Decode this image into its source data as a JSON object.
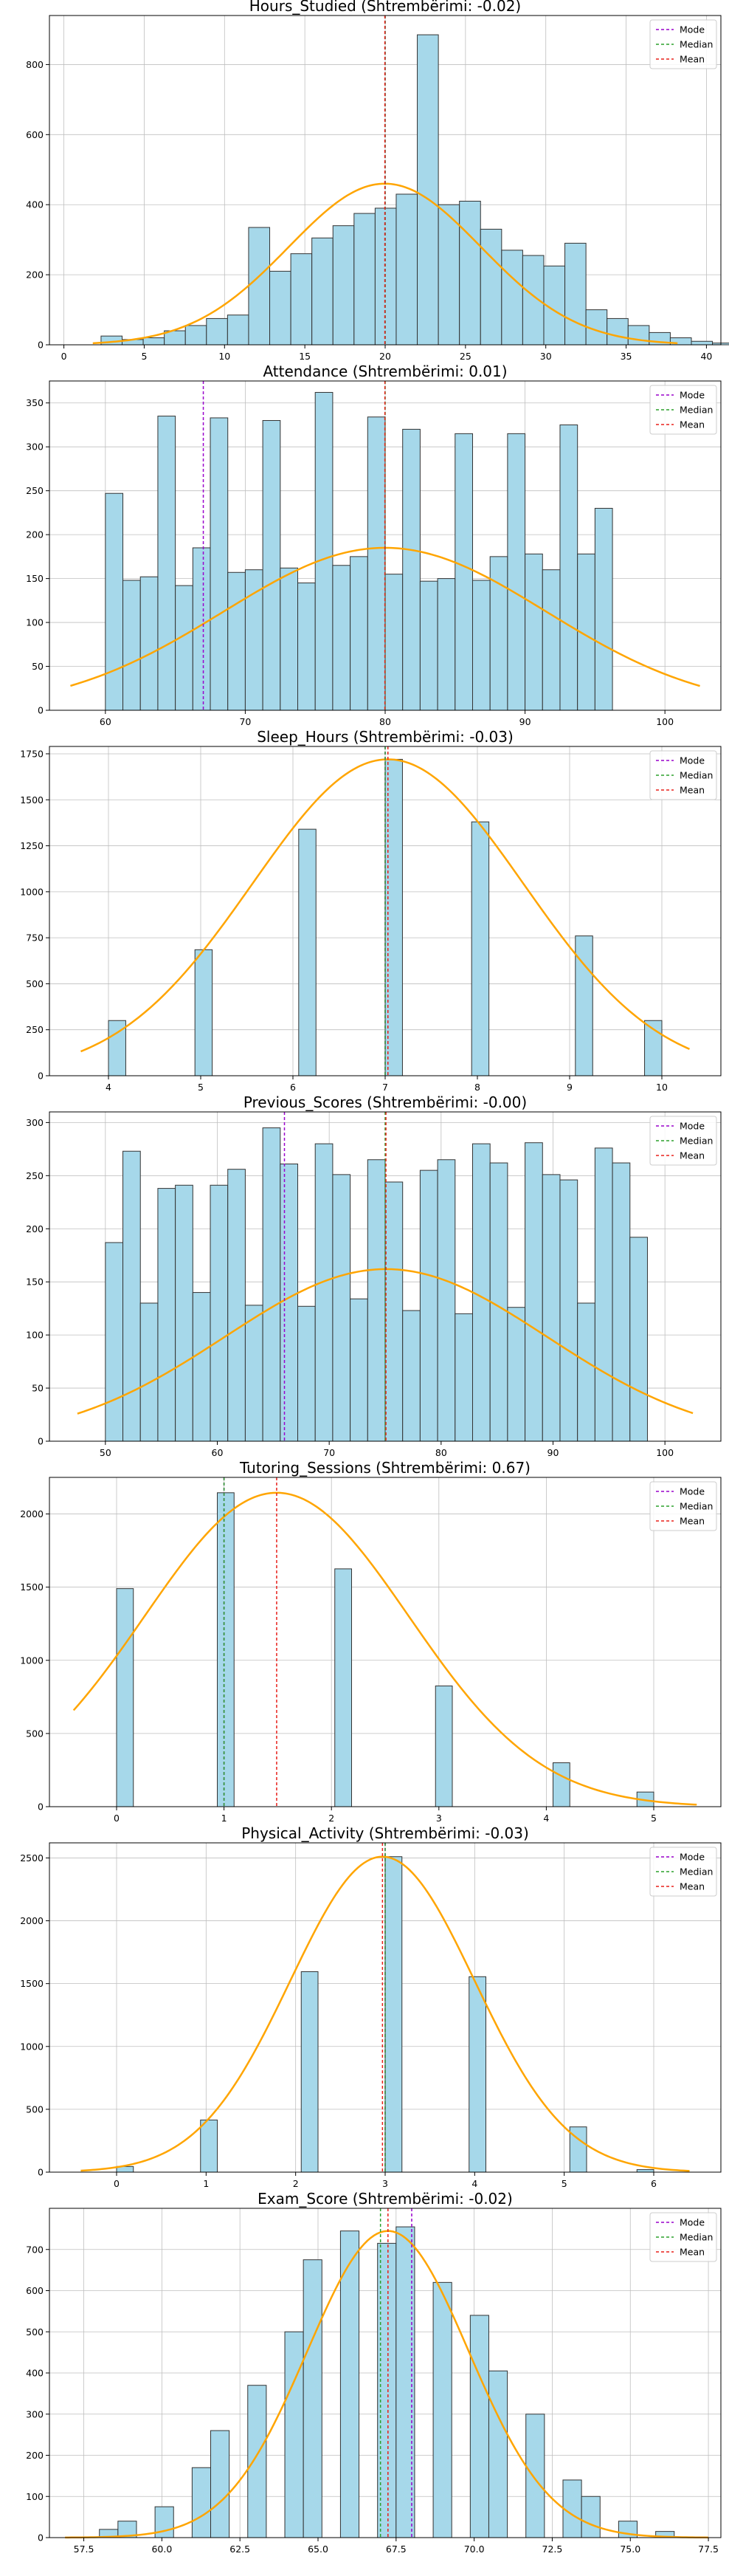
{
  "figure": {
    "colors": {
      "bar_fill": "#a6d8ea",
      "bar_edge": "#333333",
      "kde": "#ffa500",
      "mode": "#9900cc",
      "median": "#2ca02c",
      "mean": "#e8201a",
      "grid": "#bfbfbf"
    }
  },
  "chart_data": [
    {
      "type": "bar",
      "title": "Hours_Studied (Shtrembërimi: -0.02)",
      "legend": [
        "Mode",
        "Median",
        "Mean"
      ],
      "legend_position": "top-right",
      "grid": true,
      "xlim": [
        -0.9,
        40.9
      ],
      "ylim": [
        0,
        940
      ],
      "xticks": [
        0,
        5,
        10,
        15,
        20,
        25,
        30,
        35,
        40
      ],
      "yticks": [
        0,
        200,
        400,
        600,
        800
      ],
      "bin_start": 1,
      "bin_width": 1.3125,
      "values": [
        0,
        25,
        15,
        20,
        40,
        55,
        75,
        85,
        335,
        210,
        260,
        305,
        340,
        375,
        390,
        430,
        885,
        400,
        410,
        330,
        270,
        255,
        225,
        290,
        100,
        75,
        55,
        35,
        20,
        10,
        5,
        5
      ],
      "mode": 20,
      "median": 20,
      "mean": 19.98,
      "kde": {
        "mu": 19.98,
        "sigma": 5.99,
        "peak": 460,
        "x_range": [
          1.8,
          38.2
        ]
      }
    },
    {
      "type": "bar",
      "title": "Attendance (Shtrembërimi: 0.01)",
      "legend": [
        "Mode",
        "Median",
        "Mean"
      ],
      "legend_position": "top-right",
      "grid": true,
      "xlim": [
        56,
        104
      ],
      "ylim": [
        0,
        375
      ],
      "xticks": [
        60,
        70,
        80,
        90,
        100
      ],
      "yticks": [
        0,
        50,
        100,
        150,
        200,
        250,
        300,
        350
      ],
      "bin_start": 60,
      "bin_width": 1.25,
      "values": [
        247,
        148,
        152,
        335,
        142,
        185,
        333,
        157,
        160,
        330,
        162,
        145,
        362,
        165,
        175,
        334,
        155,
        320,
        147,
        150,
        315,
        148,
        175,
        315,
        178,
        160,
        325,
        178,
        230,
        0,
        0,
        0
      ],
      "mode": 67,
      "median": 80,
      "mean": 79.98,
      "kde": {
        "mu": 79.98,
        "sigma": 11.55,
        "peak": 185,
        "x_range": [
          57.5,
          102.5
        ]
      }
    },
    {
      "type": "bar",
      "title": "Sleep_Hours (Shtrembërimi: -0.03)",
      "legend": [
        "Mode",
        "Median",
        "Mean"
      ],
      "legend_position": "top-right",
      "grid": true,
      "xlim": [
        3.36,
        10.64
      ],
      "ylim": [
        0,
        1790
      ],
      "xticks": [
        4,
        5,
        6,
        7,
        8,
        9,
        10
      ],
      "yticks": [
        0,
        250,
        500,
        750,
        1000,
        1250,
        1500,
        1750
      ],
      "bin_start": 4,
      "bin_width": 0.1875,
      "values": [
        300,
        0,
        0,
        0,
        0,
        685,
        0,
        0,
        0,
        0,
        0,
        1340,
        0,
        0,
        0,
        0,
        1720,
        0,
        0,
        0,
        0,
        1380,
        0,
        0,
        0,
        0,
        0,
        760,
        0,
        0,
        0,
        300
      ],
      "mode": 7,
      "median": 7,
      "mean": 7.03,
      "kde": {
        "mu": 7.03,
        "sigma": 1.47,
        "peak": 1720,
        "x_range": [
          3.7,
          10.3
        ]
      }
    },
    {
      "type": "bar",
      "title": "Previous_Scores (Shtrembërimi: -0.00)",
      "legend": [
        "Mode",
        "Median",
        "Mean"
      ],
      "legend_position": "top-right",
      "grid": true,
      "xlim": [
        45,
        105
      ],
      "ylim": [
        0,
        310
      ],
      "xticks": [
        50,
        60,
        70,
        80,
        90,
        100
      ],
      "yticks": [
        0,
        50,
        100,
        150,
        200,
        250,
        300
      ],
      "bin_start": 50,
      "bin_width": 1.5625,
      "values": [
        187,
        273,
        130,
        238,
        241,
        140,
        241,
        256,
        128,
        295,
        261,
        127,
        280,
        251,
        134,
        265,
        244,
        123,
        255,
        265,
        120,
        280,
        262,
        126,
        281,
        251,
        246,
        130,
        276,
        262,
        192,
        0
      ],
      "mode": 66,
      "median": 75,
      "mean": 75.07,
      "kde": {
        "mu": 75.07,
        "sigma": 14.4,
        "peak": 162,
        "x_range": [
          47.5,
          102.5
        ]
      }
    },
    {
      "type": "bar",
      "title": "Tutoring_Sessions (Shtrembërimi: 0.67)",
      "legend": [
        "Mode",
        "Median",
        "Mean"
      ],
      "legend_position": "top-right",
      "grid": true,
      "xlim": [
        -0.625,
        5.625
      ],
      "ylim": [
        0,
        2250
      ],
      "xticks": [
        0,
        1,
        2,
        3,
        4,
        5
      ],
      "yticks": [
        0,
        500,
        1000,
        1500,
        2000
      ],
      "bin_start": 0,
      "bin_width": 0.15625,
      "values": [
        1490,
        0,
        0,
        0,
        0,
        0,
        2145,
        0,
        0,
        0,
        0,
        0,
        0,
        1625,
        0,
        0,
        0,
        0,
        0,
        825,
        0,
        0,
        0,
        0,
        0,
        0,
        300,
        0,
        0,
        0,
        0,
        100
      ],
      "mode": 1,
      "median": 1,
      "mean": 1.49,
      "kde": {
        "mu": 1.49,
        "sigma": 1.23,
        "peak": 2145,
        "x_range": [
          -0.4,
          5.4
        ]
      }
    },
    {
      "type": "bar",
      "title": "Physical_Activity (Shtrembërimi: -0.03)",
      "legend": [
        "Mode",
        "Median",
        "Mean"
      ],
      "legend_position": "top-right",
      "grid": true,
      "xlim": [
        -0.75,
        6.75
      ],
      "ylim": [
        0,
        2620
      ],
      "xticks": [
        0,
        1,
        2,
        3,
        4,
        5,
        6
      ],
      "yticks": [
        0,
        500,
        1000,
        1500,
        2000,
        2500
      ],
      "bin_start": 0,
      "bin_width": 0.1875,
      "values": [
        45,
        0,
        0,
        0,
        0,
        415,
        0,
        0,
        0,
        0,
        0,
        1595,
        0,
        0,
        0,
        0,
        2510,
        0,
        0,
        0,
        0,
        1555,
        0,
        0,
        0,
        0,
        0,
        360,
        0,
        0,
        0,
        20
      ],
      "mode": 3,
      "median": 3,
      "mean": 2.97,
      "kde": {
        "mu": 2.97,
        "sigma": 1.03,
        "peak": 2510,
        "x_range": [
          -0.4,
          6.4
        ]
      }
    },
    {
      "type": "bar",
      "title": "Exam_Score (Shtrembërimi: -0.02)",
      "legend": [
        "Mode",
        "Median",
        "Mean"
      ],
      "legend_position": "top-right",
      "grid": true,
      "xlim": [
        56.4,
        77.9
      ],
      "ylim": [
        0,
        800
      ],
      "xticks": [
        57.5,
        60.0,
        62.5,
        65.0,
        67.5,
        70.0,
        72.5,
        75.0,
        77.5
      ],
      "yticks": [
        0,
        100,
        200,
        300,
        400,
        500,
        600,
        700
      ],
      "bin_start": 58,
      "bin_width": 0.59375,
      "values": [
        20,
        40,
        0,
        75,
        0,
        170,
        260,
        0,
        370,
        0,
        500,
        675,
        0,
        745,
        0,
        715,
        755,
        0,
        620,
        0,
        540,
        405,
        0,
        300,
        0,
        140,
        100,
        0,
        40,
        0,
        15,
        0
      ],
      "mode": 68,
      "median": 67,
      "mean": 67.24,
      "kde": {
        "mu": 67.24,
        "sigma": 2.59,
        "peak": 745,
        "x_range": [
          56.9,
          77.5
        ]
      }
    }
  ]
}
